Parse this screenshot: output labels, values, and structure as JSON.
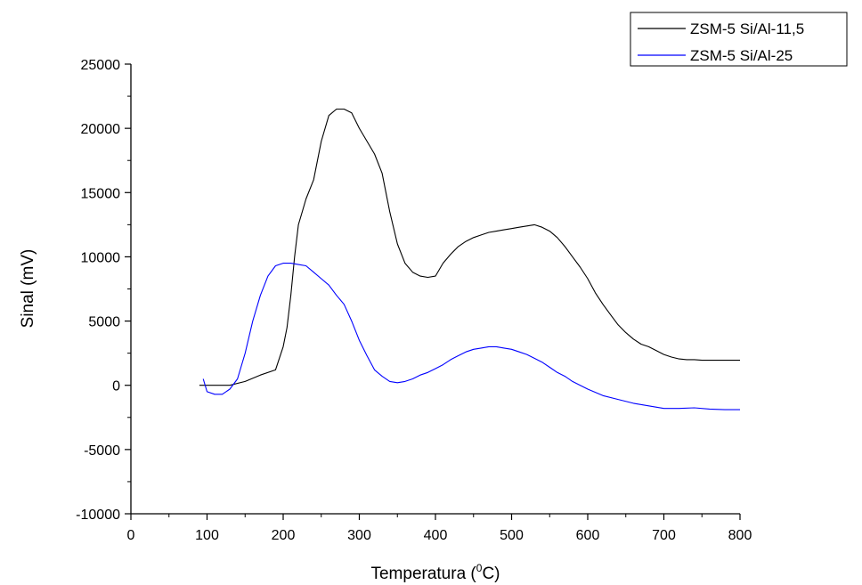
{
  "chart_data": {
    "type": "line",
    "title": "",
    "xlabel": "Temperatura (",
    "xlabel_superscript": "0",
    "xlabel_suffix": "C)",
    "ylabel": "Sinal (mV)",
    "xlim": [
      0,
      800
    ],
    "ylim": [
      -10000,
      25000
    ],
    "xticks": [
      0,
      100,
      200,
      300,
      400,
      500,
      600,
      700,
      800
    ],
    "yticks": [
      -10000,
      -5000,
      0,
      5000,
      10000,
      15000,
      20000,
      25000
    ],
    "grid": false,
    "legend_position": "top-right",
    "series": [
      {
        "name": "ZSM-5 Si/Al-11,5",
        "color": "#000000",
        "x": [
          90,
          110,
          130,
          150,
          170,
          190,
          200,
          205,
          210,
          215,
          220,
          225,
          230,
          240,
          250,
          260,
          270,
          280,
          290,
          300,
          310,
          320,
          330,
          340,
          350,
          360,
          370,
          380,
          390,
          400,
          410,
          420,
          430,
          440,
          450,
          460,
          470,
          480,
          490,
          500,
          510,
          520,
          530,
          540,
          550,
          560,
          570,
          580,
          590,
          600,
          610,
          620,
          630,
          640,
          650,
          660,
          670,
          680,
          690,
          700,
          710,
          720,
          730,
          740,
          750,
          760,
          780,
          800
        ],
        "values": [
          0,
          0,
          0,
          300,
          800,
          1200,
          3000,
          4500,
          7000,
          10000,
          12500,
          13500,
          14500,
          16000,
          19000,
          21000,
          21500,
          21500,
          21200,
          20000,
          19000,
          18000,
          16500,
          13500,
          11000,
          9500,
          8800,
          8500,
          8400,
          8500,
          9500,
          10200,
          10800,
          11200,
          11500,
          11700,
          11900,
          12000,
          12100,
          12200,
          12300,
          12400,
          12500,
          12300,
          12000,
          11500,
          10800,
          10000,
          9200,
          8300,
          7200,
          6300,
          5500,
          4700,
          4100,
          3600,
          3200,
          3000,
          2700,
          2400,
          2200,
          2050,
          2000,
          2000,
          1950,
          1950,
          1950,
          1950
        ]
      },
      {
        "name": "ZSM-5 Si/Al-25",
        "color": "#0000ff",
        "x": [
          95,
          100,
          110,
          120,
          130,
          140,
          150,
          160,
          170,
          180,
          190,
          200,
          210,
          220,
          230,
          240,
          250,
          260,
          270,
          280,
          290,
          300,
          310,
          320,
          330,
          340,
          350,
          360,
          370,
          380,
          390,
          400,
          410,
          420,
          430,
          440,
          450,
          460,
          470,
          480,
          490,
          500,
          510,
          520,
          530,
          540,
          550,
          560,
          570,
          580,
          590,
          600,
          620,
          640,
          660,
          680,
          700,
          720,
          740,
          760,
          780,
          800
        ],
        "values": [
          500,
          -500,
          -700,
          -700,
          -300,
          500,
          2500,
          5000,
          7000,
          8500,
          9300,
          9500,
          9500,
          9400,
          9300,
          8800,
          8300,
          7800,
          7000,
          6300,
          5000,
          3500,
          2300,
          1200,
          700,
          300,
          200,
          300,
          500,
          800,
          1000,
          1300,
          1600,
          2000,
          2300,
          2600,
          2800,
          2900,
          3000,
          3000,
          2900,
          2800,
          2600,
          2400,
          2100,
          1800,
          1400,
          1000,
          700,
          300,
          0,
          -300,
          -800,
          -1100,
          -1400,
          -1600,
          -1800,
          -1800,
          -1750,
          -1850,
          -1900,
          -1900
        ]
      }
    ]
  }
}
